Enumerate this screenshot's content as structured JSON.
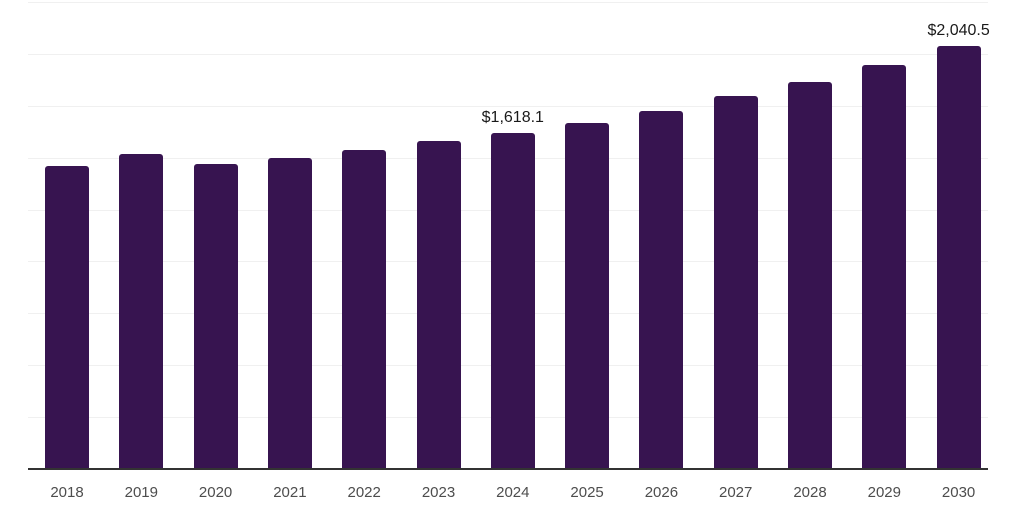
{
  "chart_data": {
    "type": "bar",
    "title": "",
    "xlabel": "",
    "ylabel": "",
    "categories": [
      "2018",
      "2019",
      "2020",
      "2021",
      "2022",
      "2023",
      "2024",
      "2025",
      "2026",
      "2027",
      "2028",
      "2029",
      "2030"
    ],
    "values": [
      1460,
      1518,
      1470,
      1500,
      1538,
      1580,
      1618.1,
      1666,
      1724,
      1795,
      1866,
      1948,
      2040.5
    ],
    "value_labels": [
      "",
      "",
      "",
      "",
      "",
      "",
      "$1,618.1",
      "",
      "",
      "",
      "",
      "",
      "$2,040.5"
    ],
    "ylim": [
      0,
      2250
    ],
    "grid": {
      "axis": "y",
      "step": 250
    },
    "legend": "none",
    "colors": {
      "bar": "#371450",
      "axis_line": "#333333",
      "gridline": "#f0f0f0",
      "tick_label": "#4d4d4d",
      "value_label": "#1a1a1a",
      "background": "#ffffff"
    }
  }
}
